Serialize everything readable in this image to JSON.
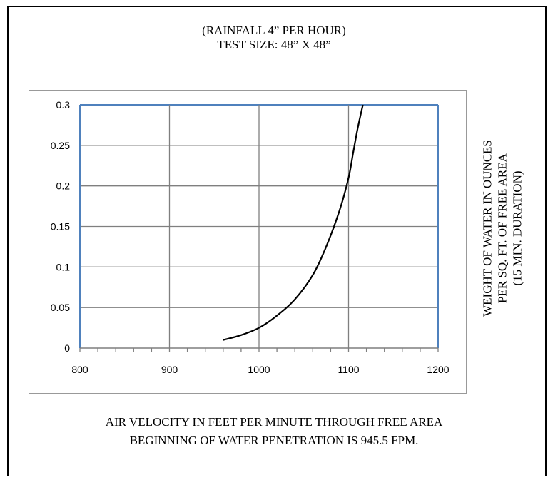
{
  "header": {
    "line1": "(RAINFALL 4” PER HOUR)",
    "line2": "TEST SIZE:  48” X 48”"
  },
  "y_axis_label": {
    "line1": "WEIGHT OF WATER IN OUNCES",
    "line2": "PER SQ. FT. OF FREE AREA",
    "line3": "(15 MIN. DURATION)"
  },
  "footer": {
    "line1": "AIR VELOCITY IN FEET PER MINUTE THROUGH FREE AREA",
    "line2": "BEGINNING OF WATER PENETRATION IS 945.5 FPM."
  },
  "colors": {
    "gridline": "#7f7f7f",
    "top_right_border": "#4f81bd",
    "curve": "#000000"
  },
  "chart_data": {
    "type": "line",
    "xlim": [
      800,
      1200
    ],
    "ylim": [
      0,
      0.3
    ],
    "x_ticks": [
      800,
      900,
      1000,
      1100,
      1200
    ],
    "x_tick_labels": [
      "800",
      "900",
      "1000",
      "1100",
      "1200"
    ],
    "y_ticks": [
      0,
      0.05,
      0.1,
      0.15,
      0.2,
      0.25,
      0.3
    ],
    "y_tick_labels": [
      "0",
      "0.05",
      "0.1",
      "0.15",
      "0.2",
      "0.25",
      "0.3"
    ],
    "grid": true,
    "series": [
      {
        "x": [
          960,
          980,
          1000,
          1020,
          1040,
          1060,
          1075,
          1090,
          1100,
          1105,
          1110,
          1116
        ],
        "y": [
          0.01,
          0.016,
          0.025,
          0.04,
          0.06,
          0.09,
          0.125,
          0.17,
          0.21,
          0.24,
          0.27,
          0.3
        ]
      }
    ]
  }
}
